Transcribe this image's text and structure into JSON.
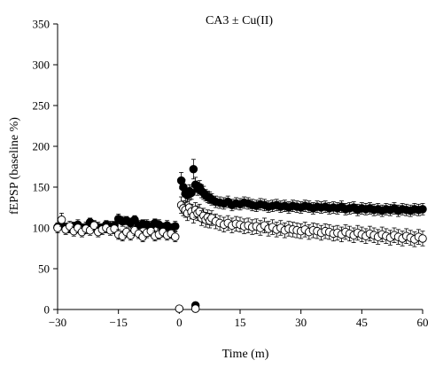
{
  "chart_data": {
    "type": "scatter",
    "title": "CA3 ± Cu(II)",
    "xlabel": "Time (m)",
    "ylabel": "fEPSP (baseline %)",
    "xlim": [
      -30,
      60
    ],
    "ylim": [
      0,
      350
    ],
    "xticks": [
      -30,
      -15,
      0,
      15,
      30,
      45,
      60
    ],
    "yticks": [
      0,
      50,
      100,
      150,
      200,
      250,
      300,
      350
    ],
    "xtick_labels": [
      "−30",
      "−15",
      "0",
      "15",
      "30",
      "45",
      "60"
    ],
    "ytick_labels": [
      "0",
      "50",
      "100",
      "150",
      "200",
      "250",
      "300",
      "350"
    ],
    "grid": false,
    "legend": "none",
    "series": [
      {
        "marker": "filled-circle",
        "color": "#000000",
        "baseline": {
          "x": [
            -30,
            -29,
            -28,
            -27,
            -26,
            -25,
            -24,
            -23,
            -22,
            -21,
            -20,
            -19,
            -18,
            -17,
            -16,
            -15,
            -14,
            -13,
            -12,
            -11,
            -10,
            -9,
            -8,
            -7,
            -6,
            -5,
            -4,
            -3,
            -2,
            -1
          ],
          "y": [
            101,
            103,
            100,
            99,
            102,
            104,
            100,
            101,
            107,
            103,
            101,
            100,
            104,
            102,
            103,
            111,
            108,
            109,
            106,
            110,
            103,
            105,
            104,
            102,
            106,
            104,
            101,
            103,
            100,
            102
          ],
          "err": [
            5,
            5,
            6,
            5,
            5,
            6,
            5,
            6,
            5,
            5,
            6,
            5,
            5,
            6,
            5,
            6,
            6,
            5,
            6,
            5,
            6,
            5,
            6,
            6,
            5,
            6,
            5,
            6,
            5,
            6
          ]
        },
        "post": {
          "x": [
            0.5,
            1,
            1.5,
            2,
            2.5,
            3,
            3.5,
            4,
            4.5,
            5,
            5.5,
            6,
            6.5,
            7,
            7.5,
            8,
            9,
            10,
            11,
            12,
            13,
            14,
            15,
            16,
            17,
            18,
            19,
            20,
            21,
            22,
            23,
            24,
            25,
            26,
            27,
            28,
            29,
            30,
            31,
            32,
            33,
            34,
            35,
            36,
            37,
            38,
            39,
            40,
            41,
            42,
            43,
            44,
            45,
            46,
            47,
            48,
            49,
            50,
            51,
            52,
            53,
            54,
            55,
            56,
            57,
            58,
            59,
            60
          ],
          "y": [
            158,
            150,
            142,
            140,
            145,
            143,
            172,
            153,
            148,
            150,
            145,
            143,
            140,
            138,
            137,
            135,
            132,
            131,
            130,
            132,
            128,
            130,
            129,
            131,
            130,
            128,
            127,
            129,
            128,
            126,
            127,
            128,
            126,
            127,
            125,
            127,
            126,
            125,
            127,
            126,
            124,
            126,
            125,
            126,
            124,
            125,
            124,
            126,
            123,
            124,
            125,
            122,
            124,
            123,
            124,
            122,
            123,
            121,
            123,
            122,
            124,
            121,
            123,
            122,
            121,
            123,
            122,
            123
          ],
          "err": [
            10,
            9,
            9,
            8,
            8,
            8,
            12,
            9,
            8,
            8,
            8,
            8,
            7,
            7,
            7,
            7,
            7,
            7,
            7,
            7,
            7,
            7,
            7,
            7,
            7,
            7,
            7,
            7,
            7,
            7,
            7,
            7,
            7,
            7,
            7,
            7,
            7,
            7,
            7,
            7,
            7,
            7,
            7,
            7,
            7,
            7,
            7,
            7,
            7,
            7,
            7,
            7,
            7,
            7,
            7,
            7,
            7,
            7,
            7,
            7,
            7,
            7,
            7,
            7,
            7,
            7,
            7,
            7
          ]
        },
        "during": {
          "x": [
            4
          ],
          "y": [
            5
          ],
          "err": [
            2
          ]
        }
      },
      {
        "marker": "open-circle",
        "color": "#000000",
        "baseline": {
          "x": [
            -30,
            -29,
            -28,
            -27,
            -26,
            -25,
            -24,
            -23,
            -22,
            -21,
            -20,
            -19,
            -18,
            -17,
            -16,
            -15,
            -14,
            -13,
            -12,
            -11,
            -10,
            -9,
            -8,
            -7,
            -6,
            -5,
            -4,
            -3,
            -2,
            -1
          ],
          "y": [
            100,
            110,
            98,
            102,
            96,
            100,
            95,
            99,
            97,
            103,
            95,
            98,
            100,
            97,
            99,
            92,
            90,
            95,
            91,
            97,
            93,
            89,
            94,
            96,
            90,
            92,
            95,
            91,
            93,
            89
          ],
          "err": [
            6,
            8,
            6,
            6,
            6,
            6,
            6,
            6,
            6,
            6,
            6,
            6,
            6,
            6,
            6,
            6,
            6,
            6,
            6,
            6,
            6,
            6,
            6,
            6,
            6,
            6,
            6,
            6,
            6,
            6
          ]
        },
        "post": {
          "x": [
            0.5,
            1,
            1.5,
            2,
            2.5,
            3,
            3.5,
            4,
            4.5,
            5,
            5.5,
            6,
            6.5,
            7,
            7.5,
            8,
            9,
            10,
            11,
            12,
            13,
            14,
            15,
            16,
            17,
            18,
            19,
            20,
            21,
            22,
            23,
            24,
            25,
            26,
            27,
            28,
            29,
            30,
            31,
            32,
            33,
            34,
            35,
            36,
            37,
            38,
            39,
            40,
            41,
            42,
            43,
            44,
            45,
            46,
            47,
            48,
            49,
            50,
            51,
            52,
            53,
            54,
            55,
            56,
            57,
            58,
            59,
            60
          ],
          "y": [
            128,
            124,
            122,
            118,
            125,
            120,
            115,
            122,
            118,
            120,
            112,
            115,
            110,
            113,
            109,
            112,
            108,
            106,
            104,
            106,
            103,
            105,
            104,
            102,
            103,
            101,
            102,
            100,
            103,
            99,
            101,
            98,
            100,
            97,
            99,
            98,
            97,
            96,
            98,
            95,
            97,
            96,
            94,
            96,
            95,
            93,
            94,
            92,
            95,
            93,
            91,
            94,
            92,
            90,
            93,
            91,
            89,
            92,
            90,
            88,
            91,
            89,
            87,
            90,
            88,
            86,
            89,
            87
          ],
          "err": [
            10,
            9,
            9,
            9,
            9,
            9,
            9,
            9,
            9,
            9,
            9,
            9,
            9,
            9,
            9,
            9,
            9,
            9,
            9,
            9,
            9,
            9,
            9,
            9,
            9,
            9,
            9,
            9,
            9,
            9,
            9,
            9,
            9,
            9,
            9,
            9,
            9,
            9,
            9,
            9,
            9,
            9,
            9,
            9,
            9,
            9,
            9,
            9,
            9,
            9,
            9,
            9,
            9,
            9,
            9,
            9,
            9,
            9,
            9,
            9,
            9,
            9,
            9,
            9,
            9,
            9,
            9,
            9
          ]
        },
        "during": {
          "x": [
            0,
            4
          ],
          "y": [
            1,
            1
          ],
          "err": [
            1,
            1
          ]
        }
      }
    ]
  }
}
